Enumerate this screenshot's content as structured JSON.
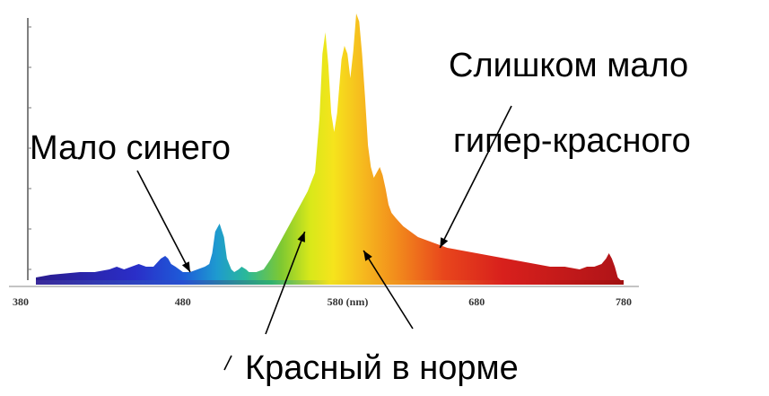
{
  "chart_data": {
    "type": "area",
    "title": "",
    "xlabel": "",
    "ylabel": "",
    "xlim": [
      380,
      780
    ],
    "ylim": [
      0,
      1
    ],
    "x_unit_label": "(nm)",
    "x_ticks": [
      {
        "value": 380,
        "label": "380"
      },
      {
        "value": 480,
        "label": "480"
      },
      {
        "value": 580,
        "label": "580 (nm)"
      },
      {
        "value": 680,
        "label": "680"
      },
      {
        "value": 780,
        "label": "780"
      }
    ],
    "series": [
      {
        "x": [
          380,
          390,
          400,
          410,
          420,
          430,
          435,
          440,
          445,
          450,
          455,
          460,
          465,
          468,
          470,
          472,
          475,
          480,
          485,
          490,
          495,
          498,
          500,
          502,
          505,
          508,
          510,
          513,
          515,
          518,
          520,
          523,
          525,
          528,
          530,
          535,
          540,
          545,
          550,
          555,
          560,
          565,
          570,
          573,
          575,
          577,
          579,
          581,
          583,
          585,
          588,
          590,
          592,
          594,
          596,
          598,
          600,
          602,
          604,
          606,
          608,
          610,
          612,
          614,
          616,
          618,
          620,
          622,
          625,
          630,
          635,
          640,
          645,
          650,
          660,
          670,
          680,
          690,
          700,
          710,
          720,
          730,
          740,
          750,
          755,
          760,
          765,
          768,
          770,
          772,
          774,
          776,
          778
        ],
        "y": [
          0.01,
          0.02,
          0.025,
          0.03,
          0.03,
          0.04,
          0.05,
          0.04,
          0.05,
          0.06,
          0.05,
          0.05,
          0.08,
          0.09,
          0.08,
          0.06,
          0.05,
          0.03,
          0.03,
          0.04,
          0.05,
          0.06,
          0.1,
          0.18,
          0.21,
          0.16,
          0.08,
          0.04,
          0.03,
          0.04,
          0.05,
          0.04,
          0.03,
          0.03,
          0.03,
          0.04,
          0.08,
          0.13,
          0.18,
          0.23,
          0.28,
          0.33,
          0.4,
          0.6,
          0.84,
          0.92,
          0.8,
          0.62,
          0.55,
          0.62,
          0.82,
          0.87,
          0.84,
          0.75,
          0.85,
          0.99,
          0.96,
          0.84,
          0.68,
          0.5,
          0.42,
          0.38,
          0.4,
          0.42,
          0.39,
          0.34,
          0.28,
          0.25,
          0.23,
          0.2,
          0.18,
          0.16,
          0.15,
          0.14,
          0.12,
          0.11,
          0.1,
          0.09,
          0.08,
          0.07,
          0.06,
          0.05,
          0.05,
          0.04,
          0.05,
          0.05,
          0.06,
          0.08,
          0.1,
          0.08,
          0.05,
          0.01,
          0.0
        ]
      }
    ],
    "annotations": [
      {
        "text": "Мало синего",
        "target_x": 485,
        "target_y": 0.03
      },
      {
        "text": "Слишком мало",
        "target_x": 655,
        "target_y": 0.12
      },
      {
        "text": "гипер-красного",
        "target_x": 655,
        "target_y": 0.12
      },
      {
        "text": "Красный в норме",
        "target_x": 563,
        "target_y": 0.18
      },
      {
        "text": "",
        "target_x": 603,
        "target_y": 0.11
      }
    ],
    "grid": false
  }
}
